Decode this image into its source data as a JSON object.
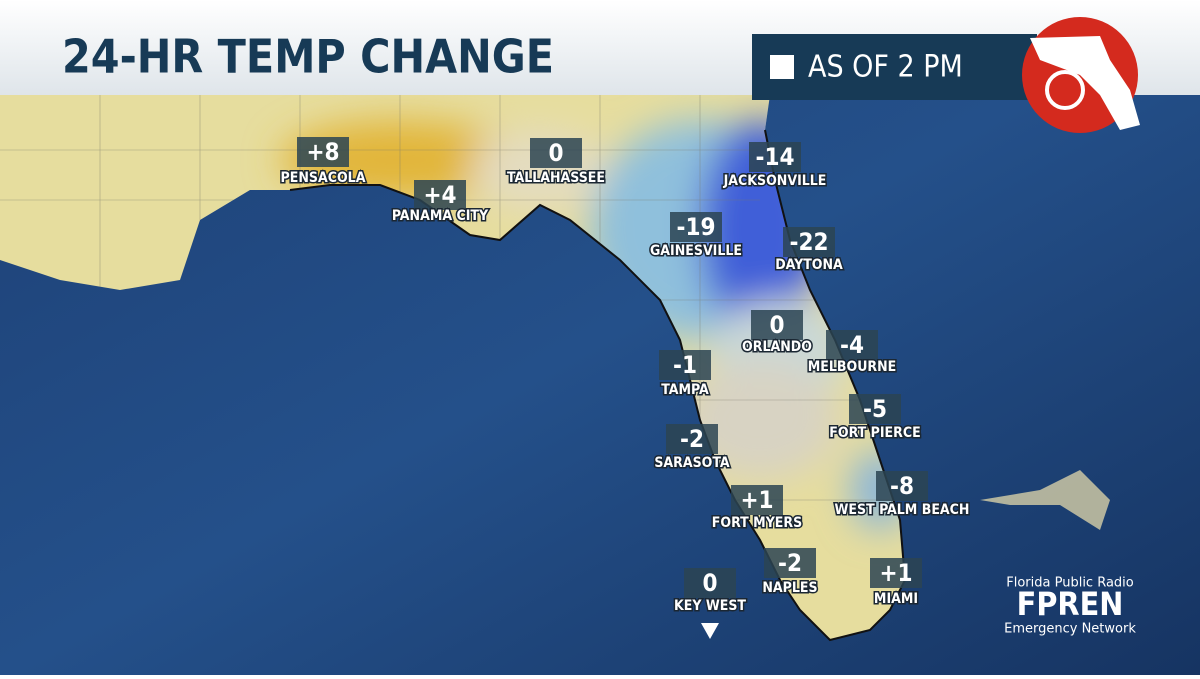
{
  "header": {
    "title": "24-HR TEMP CHANGE",
    "time": "AS OF 2 PM"
  },
  "cities": [
    {
      "name": "PENSACOLA",
      "value": "+8"
    },
    {
      "name": "PANAMA CITY",
      "value": "+4"
    },
    {
      "name": "TALLAHASSEE",
      "value": "0"
    },
    {
      "name": "JACKSONVILLE",
      "value": "-14"
    },
    {
      "name": "GAINESVILLE",
      "value": "-19"
    },
    {
      "name": "DAYTONA",
      "value": "-22"
    },
    {
      "name": "ORLANDO",
      "value": "0"
    },
    {
      "name": "MELBOURNE",
      "value": "-4"
    },
    {
      "name": "TAMPA",
      "value": "-1"
    },
    {
      "name": "FORT PIERCE",
      "value": "-5"
    },
    {
      "name": "SARASOTA",
      "value": "-2"
    },
    {
      "name": "WEST PALM BEACH",
      "value": "-8"
    },
    {
      "name": "FORT MYERS",
      "value": "+1"
    },
    {
      "name": "NAPLES",
      "value": "-2"
    },
    {
      "name": "MIAMI",
      "value": "+1"
    },
    {
      "name": "KEY WEST",
      "value": "0"
    }
  ],
  "logo": {
    "line1": "Florida Public Radio",
    "brand": "FPREN",
    "line2": "Emergency Network"
  }
}
